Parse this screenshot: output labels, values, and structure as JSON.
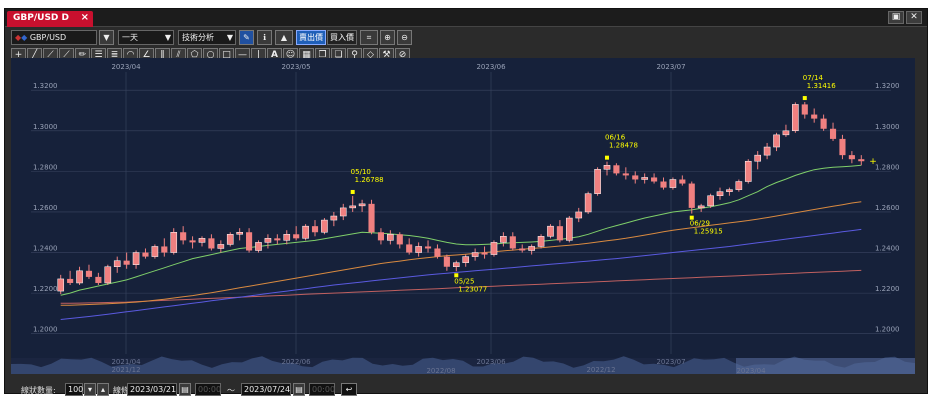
{
  "tab": {
    "title": "GBP/USD D",
    "close": "×"
  },
  "window_controls": {
    "restore": "▣",
    "close": "✕"
  },
  "toolbar": {
    "symbol": "GBP/USD",
    "period": "一天",
    "analysis": "技術分析",
    "sell_price": "賣出價",
    "buy_price": "買入價"
  },
  "chart_data": {
    "type": "candlestick",
    "xlabels_top": [
      "2023/04",
      "2023/05",
      "2023/06",
      "2023/07"
    ],
    "ylabels": [
      "1.3200",
      "1.3000",
      "1.2800",
      "1.2600",
      "1.2400",
      "1.2200",
      "1.2000"
    ],
    "ylim": [
      1.19,
      1.327
    ],
    "grid": true,
    "annotations": [
      {
        "date": "05/10",
        "price": "1.26788",
        "value": 1.26788,
        "index": 31,
        "pos": "above"
      },
      {
        "date": "05/25",
        "price": "1.23077",
        "value": 1.23077,
        "index": 42,
        "pos": "below"
      },
      {
        "date": "06/16",
        "price": "1.28478",
        "value": 1.28478,
        "index": 58,
        "pos": "above"
      },
      {
        "date": "06/29",
        "price": "1.25915",
        "value": 1.25915,
        "index": 67,
        "pos": "below"
      },
      {
        "date": "07/14",
        "price": "1.31416",
        "value": 1.31416,
        "index": 79,
        "pos": "above"
      }
    ],
    "candles": [
      [
        1.221,
        1.229,
        1.2195,
        1.227
      ],
      [
        1.227,
        1.231,
        1.224,
        1.225
      ],
      [
        1.225,
        1.233,
        1.224,
        1.231
      ],
      [
        1.231,
        1.234,
        1.227,
        1.228
      ],
      [
        1.228,
        1.23,
        1.224,
        1.225
      ],
      [
        1.225,
        1.234,
        1.224,
        1.233
      ],
      [
        1.233,
        1.238,
        1.23,
        1.236
      ],
      [
        1.236,
        1.24,
        1.232,
        1.234
      ],
      [
        1.234,
        1.241,
        1.232,
        1.24
      ],
      [
        1.24,
        1.242,
        1.237,
        1.238
      ],
      [
        1.238,
        1.244,
        1.237,
        1.243
      ],
      [
        1.243,
        1.247,
        1.238,
        1.24
      ],
      [
        1.24,
        1.252,
        1.239,
        1.25
      ],
      [
        1.25,
        1.253,
        1.244,
        1.246
      ],
      [
        1.246,
        1.248,
        1.242,
        1.245
      ],
      [
        1.245,
        1.248,
        1.243,
        1.247
      ],
      [
        1.247,
        1.249,
        1.241,
        1.242
      ],
      [
        1.242,
        1.246,
        1.24,
        1.244
      ],
      [
        1.244,
        1.25,
        1.243,
        1.249
      ],
      [
        1.249,
        1.252,
        1.246,
        1.25
      ],
      [
        1.25,
        1.252,
        1.24,
        1.241
      ],
      [
        1.241,
        1.246,
        1.24,
        1.245
      ],
      [
        1.245,
        1.249,
        1.242,
        1.247
      ],
      [
        1.247,
        1.249,
        1.244,
        1.246
      ],
      [
        1.246,
        1.251,
        1.244,
        1.249
      ],
      [
        1.249,
        1.253,
        1.246,
        1.247
      ],
      [
        1.247,
        1.254,
        1.246,
        1.253
      ],
      [
        1.253,
        1.256,
        1.248,
        1.25
      ],
      [
        1.25,
        1.257,
        1.249,
        1.256
      ],
      [
        1.256,
        1.26,
        1.253,
        1.258
      ],
      [
        1.258,
        1.264,
        1.256,
        1.262
      ],
      [
        1.262,
        1.2679,
        1.26,
        1.263
      ],
      [
        1.263,
        1.266,
        1.26,
        1.264
      ],
      [
        1.264,
        1.266,
        1.249,
        1.25
      ],
      [
        1.25,
        1.252,
        1.244,
        1.246
      ],
      [
        1.246,
        1.251,
        1.244,
        1.249
      ],
      [
        1.249,
        1.25,
        1.242,
        1.244
      ],
      [
        1.244,
        1.247,
        1.239,
        1.24
      ],
      [
        1.24,
        1.245,
        1.238,
        1.243
      ],
      [
        1.243,
        1.246,
        1.24,
        1.242
      ],
      [
        1.242,
        1.244,
        1.237,
        1.238
      ],
      [
        1.238,
        1.239,
        1.231,
        1.233
      ],
      [
        1.233,
        1.236,
        1.2308,
        1.235
      ],
      [
        1.235,
        1.239,
        1.233,
        1.238
      ],
      [
        1.238,
        1.242,
        1.236,
        1.24
      ],
      [
        1.24,
        1.243,
        1.237,
        1.239
      ],
      [
        1.239,
        1.246,
        1.238,
        1.245
      ],
      [
        1.245,
        1.25,
        1.243,
        1.248
      ],
      [
        1.248,
        1.25,
        1.241,
        1.242
      ],
      [
        1.242,
        1.244,
        1.24,
        1.241
      ],
      [
        1.241,
        1.244,
        1.239,
        1.243
      ],
      [
        1.243,
        1.249,
        1.242,
        1.248
      ],
      [
        1.248,
        1.254,
        1.247,
        1.253
      ],
      [
        1.253,
        1.256,
        1.245,
        1.246
      ],
      [
        1.246,
        1.258,
        1.245,
        1.257
      ],
      [
        1.257,
        1.262,
        1.255,
        1.26
      ],
      [
        1.26,
        1.27,
        1.259,
        1.269
      ],
      [
        1.269,
        1.282,
        1.268,
        1.281
      ],
      [
        1.281,
        1.2848,
        1.278,
        1.283
      ],
      [
        1.283,
        1.284,
        1.278,
        1.279
      ],
      [
        1.279,
        1.282,
        1.276,
        1.278
      ],
      [
        1.278,
        1.28,
        1.274,
        1.276
      ],
      [
        1.276,
        1.279,
        1.274,
        1.277
      ],
      [
        1.277,
        1.279,
        1.274,
        1.275
      ],
      [
        1.275,
        1.277,
        1.271,
        1.272
      ],
      [
        1.272,
        1.277,
        1.271,
        1.276
      ],
      [
        1.276,
        1.278,
        1.273,
        1.274
      ],
      [
        1.274,
        1.275,
        1.2592,
        1.262
      ],
      [
        1.262,
        1.264,
        1.26,
        1.263
      ],
      [
        1.263,
        1.269,
        1.262,
        1.268
      ],
      [
        1.268,
        1.272,
        1.266,
        1.27
      ],
      [
        1.27,
        1.272,
        1.268,
        1.271
      ],
      [
        1.271,
        1.276,
        1.27,
        1.275
      ],
      [
        1.275,
        1.286,
        1.274,
        1.285
      ],
      [
        1.285,
        1.29,
        1.281,
        1.288
      ],
      [
        1.288,
        1.294,
        1.286,
        1.292
      ],
      [
        1.292,
        1.299,
        1.29,
        1.298
      ],
      [
        1.298,
        1.303,
        1.297,
        1.3
      ],
      [
        1.3,
        1.314,
        1.299,
        1.313
      ],
      [
        1.313,
        1.3142,
        1.306,
        1.308
      ],
      [
        1.308,
        1.311,
        1.304,
        1.306
      ],
      [
        1.306,
        1.308,
        1.3,
        1.301
      ],
      [
        1.301,
        1.304,
        1.295,
        1.296
      ],
      [
        1.296,
        1.298,
        1.286,
        1.288
      ],
      [
        1.288,
        1.29,
        1.284,
        1.286
      ],
      [
        1.286,
        1.288,
        1.283,
        1.285
      ]
    ],
    "ma_short": [
      1.219,
      1.22,
      1.2215,
      1.2225,
      1.2235,
      1.2245,
      1.2255,
      1.2265,
      1.228,
      1.2295,
      1.231,
      1.2325,
      1.234,
      1.2355,
      1.237,
      1.238,
      1.239,
      1.24,
      1.241,
      1.242,
      1.2425,
      1.243,
      1.2435,
      1.244,
      1.2445,
      1.245,
      1.2455,
      1.246,
      1.2468,
      1.2476,
      1.2484,
      1.2492,
      1.25,
      1.2498,
      1.2495,
      1.2492,
      1.2488,
      1.2484,
      1.2478,
      1.247,
      1.246,
      1.245,
      1.2442,
      1.2438,
      1.2438,
      1.244,
      1.2442,
      1.2446,
      1.2448,
      1.245,
      1.2452,
      1.2455,
      1.246,
      1.2465,
      1.247,
      1.2478,
      1.249,
      1.2505,
      1.252,
      1.2533,
      1.2545,
      1.2558,
      1.257,
      1.258,
      1.259,
      1.26,
      1.2605,
      1.261,
      1.2618,
      1.2626,
      1.2635,
      1.2645,
      1.266,
      1.268,
      1.27,
      1.2725,
      1.2745,
      1.2762,
      1.278,
      1.2795,
      1.2808,
      1.2815,
      1.282,
      1.2823,
      1.2826,
      1.283
    ],
    "ma_mid": [
      1.214,
      1.214,
      1.2142,
      1.2144,
      1.2146,
      1.2148,
      1.215,
      1.2153,
      1.2156,
      1.216,
      1.2165,
      1.217,
      1.2176,
      1.2182,
      1.2188,
      1.2195,
      1.2202,
      1.221,
      1.2218,
      1.2226,
      1.2234,
      1.2242,
      1.225,
      1.2258,
      1.2266,
      1.2274,
      1.2282,
      1.229,
      1.2298,
      1.2306,
      1.2314,
      1.2322,
      1.233,
      1.2338,
      1.2346,
      1.2352,
      1.2358,
      1.2364,
      1.237,
      1.2375,
      1.238,
      1.2385,
      1.2388,
      1.2392,
      1.2396,
      1.24,
      1.2404,
      1.2408,
      1.2412,
      1.2416,
      1.242,
      1.2424,
      1.2428,
      1.2432,
      1.2436,
      1.244,
      1.2446,
      1.2452,
      1.2458,
      1.2464,
      1.247,
      1.2478,
      1.2486,
      1.2494,
      1.2502,
      1.251,
      1.2516,
      1.2522,
      1.2528,
      1.2534,
      1.254,
      1.2546,
      1.2552,
      1.2558,
      1.2565,
      1.2572,
      1.258,
      1.2588,
      1.2596,
      1.2604,
      1.2612,
      1.262,
      1.2628,
      1.2636,
      1.2644,
      1.265
    ],
    "ma_long": [
      1.207,
      1.2075,
      1.208,
      1.2085,
      1.209,
      1.2096,
      1.2102,
      1.2108,
      1.2114,
      1.212,
      1.2126,
      1.2132,
      1.2138,
      1.2144,
      1.215,
      1.2156,
      1.2162,
      1.2168,
      1.2174,
      1.218,
      1.2186,
      1.2192,
      1.2198,
      1.2204,
      1.221,
      1.2216,
      1.2222,
      1.2228,
      1.2234,
      1.224,
      1.2245,
      1.225,
      1.2255,
      1.226,
      1.2265,
      1.227,
      1.2275,
      1.228,
      1.2285,
      1.229,
      1.2294,
      1.2298,
      1.2302,
      1.2306,
      1.231,
      1.2314,
      1.2318,
      1.2322,
      1.2326,
      1.233,
      1.2334,
      1.2338,
      1.2342,
      1.2346,
      1.235,
      1.2354,
      1.2358,
      1.2362,
      1.2366,
      1.237,
      1.2375,
      1.238,
      1.2385,
      1.239,
      1.2395,
      1.24,
      1.2405,
      1.241,
      1.2415,
      1.242,
      1.2425,
      1.243,
      1.2436,
      1.2442,
      1.2448,
      1.2454,
      1.246,
      1.2466,
      1.2472,
      1.2478,
      1.2484,
      1.249,
      1.2496,
      1.2502,
      1.2508,
      1.2514
    ],
    "ma_flat": [
      1.215,
      1.215,
      1.2151,
      1.2152,
      1.2153,
      1.2154,
      1.2155,
      1.2156,
      1.2158,
      1.216,
      1.2162,
      1.2164,
      1.2166,
      1.2168,
      1.217,
      1.2172,
      1.2174,
      1.2176,
      1.2178,
      1.218,
      1.2182,
      1.2184,
      1.2186,
      1.2188,
      1.219,
      1.2192,
      1.2194,
      1.2196,
      1.2198,
      1.22,
      1.2202,
      1.2204,
      1.2206,
      1.2208,
      1.221,
      1.2212,
      1.2214,
      1.2216,
      1.2218,
      1.222,
      1.2222,
      1.2224,
      1.2226,
      1.2228,
      1.223,
      1.2232,
      1.2234,
      1.2236,
      1.2238,
      1.224,
      1.2242,
      1.2244,
      1.2246,
      1.2248,
      1.225,
      1.2252,
      1.2254,
      1.2256,
      1.2258,
      1.226,
      1.2262,
      1.2264,
      1.2266,
      1.2268,
      1.227,
      1.2272,
      1.2274,
      1.2276,
      1.2278,
      1.228,
      1.2282,
      1.2284,
      1.2286,
      1.2288,
      1.229,
      1.2292,
      1.2294,
      1.2296,
      1.2298,
      1.23,
      1.2302,
      1.2304,
      1.2306,
      1.2308,
      1.231,
      1.2312
    ],
    "navigator_labels": [
      "2021/04",
      "2021/12",
      "2022/06",
      "2022/08",
      "2023/06",
      "2022/12",
      "2023/07",
      "2023/04"
    ]
  },
  "colors": {
    "bg": "#16213a",
    "up": "#f08080",
    "down": "#f08080",
    "grid": "#3a4560",
    "ma_short": "#7fcf6a",
    "ma_mid": "#d98a40",
    "ma_long": "#5a5ae0",
    "ma_flat": "#c06060",
    "annot": "#ffff00"
  },
  "bottom": {
    "count_label": "線狀數量:",
    "count_value": "100",
    "range_label": "線條",
    "from_date": "2023/03/21",
    "from_time": "00:00",
    "tilde": "〜",
    "to_date": "2023/07/24",
    "to_time": "00:00"
  }
}
